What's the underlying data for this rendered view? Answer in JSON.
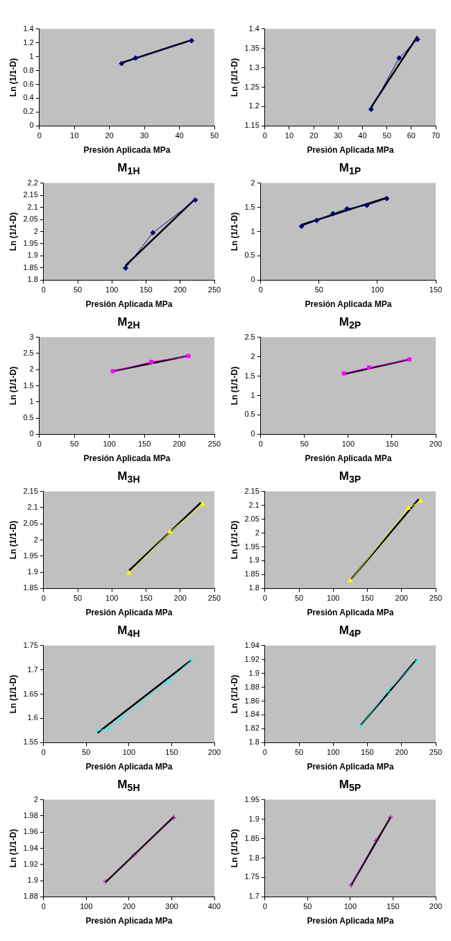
{
  "chart_data": [
    {
      "type": "line",
      "xlabel": "Presión Aplicada MPa",
      "ylabel": "Ln (1/1-D)",
      "xlim": [
        0,
        50
      ],
      "xticks": [
        0,
        10,
        20,
        30,
        40,
        50
      ],
      "ylim": [
        0,
        1.4
      ],
      "yticks": [
        0,
        0.2,
        0.4,
        0.6,
        0.8,
        1,
        1.2,
        1.4
      ],
      "grid": false,
      "legend": false,
      "series": [
        {
          "color": "#000080",
          "marker": "diamond",
          "x": [
            23.5,
            27.5,
            43.5
          ],
          "values": [
            0.9,
            0.98,
            1.23
          ]
        },
        {
          "color": "#000000",
          "marker": "none",
          "x": [
            23.5,
            43.5
          ],
          "values": [
            0.91,
            1.24
          ]
        }
      ]
    },
    {
      "type": "line",
      "xlabel": "Presión Aplicada MPa",
      "ylabel": "Ln (1/1-D)",
      "xlim": [
        0,
        70
      ],
      "xticks": [
        0,
        10,
        20,
        30,
        40,
        50,
        60,
        70
      ],
      "ylim": [
        1.15,
        1.4
      ],
      "yticks": [
        1.15,
        1.2,
        1.25,
        1.3,
        1.35,
        1.4
      ],
      "grid": false,
      "legend": false,
      "series": [
        {
          "color": "#000080",
          "marker": "diamond",
          "x": [
            43.5,
            55,
            62.5
          ],
          "values": [
            1.193,
            1.325,
            1.373
          ]
        },
        {
          "color": "#000000",
          "marker": "none",
          "x": [
            43.5,
            62.5
          ],
          "values": [
            1.198,
            1.381
          ]
        }
      ]
    },
    {
      "type": "line",
      "title": "M$_{1H}$",
      "xlabel": "Presión Aplicada MPa",
      "ylabel": "Ln (1/1-D)",
      "xlim": [
        0,
        250
      ],
      "xticks": [
        0,
        50,
        100,
        150,
        200,
        250
      ],
      "ylim": [
        1.8,
        2.2
      ],
      "yticks": [
        1.8,
        1.85,
        1.9,
        1.95,
        2,
        2.05,
        2.1,
        2.15,
        2.2
      ],
      "grid": false,
      "legend": false,
      "series": [
        {
          "color": "#000080",
          "marker": "diamond",
          "x": [
            120,
            160,
            222
          ],
          "values": [
            1.85,
            1.995,
            2.13
          ]
        },
        {
          "color": "#000000",
          "marker": "none",
          "x": [
            120,
            222
          ],
          "values": [
            1.86,
            2.135
          ]
        }
      ]
    },
    {
      "type": "line",
      "title": "M$_{1P}$",
      "xlabel": "Presión Aplicada MPa",
      "ylabel": "Ln (1/1-D)",
      "xlim": [
        0,
        150
      ],
      "xticks": [
        0,
        50,
        100,
        150
      ],
      "ylim": [
        0,
        2
      ],
      "yticks": [
        0,
        0.5,
        1,
        1.5,
        2
      ],
      "grid": false,
      "legend": false,
      "series": [
        {
          "color": "#000080",
          "marker": "diamond",
          "x": [
            35,
            48,
            62,
            74,
            91,
            108
          ],
          "values": [
            1.11,
            1.23,
            1.37,
            1.47,
            1.54,
            1.68
          ]
        },
        {
          "color": "#000000",
          "marker": "none",
          "x": [
            35,
            108
          ],
          "values": [
            1.14,
            1.7
          ]
        }
      ]
    },
    {
      "type": "line",
      "title": "M$_{2H}$",
      "xlabel": "Presión Aplicada MPa",
      "ylabel": "Ln (1/1-D)",
      "xlim": [
        0,
        250
      ],
      "xticks": [
        0,
        50,
        100,
        150,
        200,
        250
      ],
      "ylim": [
        0,
        3
      ],
      "yticks": [
        0,
        0.5,
        1,
        1.5,
        2,
        2.5,
        3
      ],
      "grid": false,
      "legend": false,
      "series": [
        {
          "color": "#ff00ff",
          "marker": "square",
          "x": [
            105,
            160,
            213
          ],
          "values": [
            1.95,
            2.24,
            2.42
          ]
        },
        {
          "color": "#000000",
          "marker": "none",
          "x": [
            105,
            213
          ],
          "values": [
            1.95,
            2.43
          ]
        }
      ]
    },
    {
      "type": "line",
      "title": "M$_{2P}$",
      "xlabel": "Presión Aplicada MPa",
      "ylabel": "Ln (1/1-D)",
      "xlim": [
        0,
        200
      ],
      "xticks": [
        0,
        50,
        100,
        150,
        200
      ],
      "ylim": [
        0,
        2.5
      ],
      "yticks": [
        0,
        0.5,
        1,
        1.5,
        2,
        2.5
      ],
      "grid": false,
      "legend": false,
      "series": [
        {
          "color": "#ff00ff",
          "marker": "square",
          "x": [
            95,
            124,
            170
          ],
          "values": [
            1.57,
            1.72,
            1.93
          ]
        },
        {
          "color": "#000000",
          "marker": "none",
          "x": [
            95,
            170
          ],
          "values": [
            1.55,
            1.93
          ]
        }
      ]
    },
    {
      "type": "line",
      "title": "M$_{3H}$",
      "xlabel": "Presión Aplicada MPa",
      "ylabel": "Ln (1/1-D)",
      "xlim": [
        0,
        250
      ],
      "xticks": [
        0,
        50,
        100,
        150,
        200,
        250
      ],
      "ylim": [
        1.85,
        2.15
      ],
      "yticks": [
        1.85,
        1.9,
        1.95,
        2,
        2.05,
        2.1,
        2.15
      ],
      "grid": false,
      "legend": false,
      "series": [
        {
          "color": "#ffff00",
          "marker": "triangle",
          "x": [
            125,
            185,
            233
          ],
          "values": [
            1.898,
            2.025,
            2.11
          ]
        },
        {
          "color": "#000000",
          "marker": "none",
          "x": [
            125,
            230
          ],
          "values": [
            1.905,
            2.115
          ]
        }
      ]
    },
    {
      "type": "line",
      "title": "M$_{3P}$",
      "xlabel": "Presión Aplicada MPa",
      "ylabel": "Ln (1/1-D)",
      "xlim": [
        0,
        250
      ],
      "xticks": [
        0,
        50,
        100,
        150,
        200,
        250
      ],
      "ylim": [
        1.8,
        2.15
      ],
      "yticks": [
        1.8,
        1.85,
        1.9,
        1.95,
        2,
        2.05,
        2.1,
        2.15
      ],
      "grid": false,
      "legend": false,
      "series": [
        {
          "color": "#ffff00",
          "marker": "triangle",
          "x": [
            125,
            210,
            228
          ],
          "values": [
            1.828,
            2.09,
            2.115
          ]
        },
        {
          "color": "#000000",
          "marker": "none",
          "x": [
            125,
            225
          ],
          "values": [
            1.83,
            2.122
          ]
        }
      ]
    },
    {
      "type": "line",
      "title": "M$_{4H}$",
      "xlabel": "Presión Aplicada MPa",
      "ylabel": "Ln (1/1-D)",
      "xlim": [
        0,
        200
      ],
      "xticks": [
        0,
        50,
        100,
        150,
        200
      ],
      "ylim": [
        1.55,
        1.75
      ],
      "yticks": [
        1.55,
        1.6,
        1.65,
        1.7,
        1.75
      ],
      "grid": false,
      "legend": false,
      "series": [
        {
          "color": "#00ffff",
          "marker": "cross",
          "x": [
            63,
            75,
            90,
            145,
            173
          ],
          "values": [
            1.575,
            1.578,
            1.6,
            1.675,
            1.72
          ]
        },
        {
          "color": "#000000",
          "marker": "none",
          "x": [
            63,
            173
          ],
          "values": [
            1.57,
            1.72
          ]
        }
      ]
    },
    {
      "type": "line",
      "title": "M$_{4P}$",
      "xlabel": "Presión Aplicada MPa",
      "ylabel": "Ln (1/1-D)",
      "xlim": [
        0,
        250
      ],
      "xticks": [
        0,
        50,
        100,
        150,
        200,
        250
      ],
      "ylim": [
        1.8,
        1.94
      ],
      "yticks": [
        1.8,
        1.82,
        1.84,
        1.86,
        1.88,
        1.9,
        1.92,
        1.94
      ],
      "grid": false,
      "legend": false,
      "series": [
        {
          "color": "#00ffff",
          "marker": "cross",
          "x": [
            140,
            180,
            222
          ],
          "values": [
            1.824,
            1.874,
            1.918
          ]
        },
        {
          "color": "#000000",
          "marker": "none",
          "x": [
            140,
            222
          ],
          "values": [
            1.825,
            1.92
          ]
        }
      ]
    },
    {
      "type": "line",
      "title": "M$_{5H}$",
      "xlabel": "Presión Aplicada MPa",
      "ylabel": "Ln (1/1-D)",
      "xlim": [
        0,
        400
      ],
      "xticks": [
        0,
        100,
        200,
        300,
        400
      ],
      "ylim": [
        1.88,
        2
      ],
      "yticks": [
        1.88,
        1.9,
        1.92,
        1.94,
        1.96,
        1.98,
        2
      ],
      "grid": false,
      "legend": false,
      "series": [
        {
          "color": "#800080",
          "marker": "cross",
          "x": [
            145,
            212,
            305
          ],
          "values": [
            1.899,
            1.932,
            1.978
          ]
        },
        {
          "color": "#000000",
          "marker": "none",
          "x": [
            145,
            305
          ],
          "values": [
            1.898,
            1.979
          ]
        }
      ]
    },
    {
      "type": "line",
      "title": "M$_{5P}$",
      "xlabel": "Presión Aplicada MPa",
      "ylabel": "Ln (1/1-D)",
      "xlim": [
        0,
        200
      ],
      "xticks": [
        0,
        50,
        100,
        150,
        200
      ],
      "ylim": [
        1.7,
        1.95
      ],
      "yticks": [
        1.7,
        1.75,
        1.8,
        1.85,
        1.9,
        1.95
      ],
      "grid": false,
      "legend": false,
      "series": [
        {
          "color": "#800080",
          "marker": "cross",
          "x": [
            101,
            130,
            147
          ],
          "values": [
            1.73,
            1.845,
            1.905
          ]
        },
        {
          "color": "#000000",
          "marker": "none",
          "x": [
            101,
            147
          ],
          "values": [
            1.73,
            1.905
          ]
        }
      ]
    }
  ]
}
